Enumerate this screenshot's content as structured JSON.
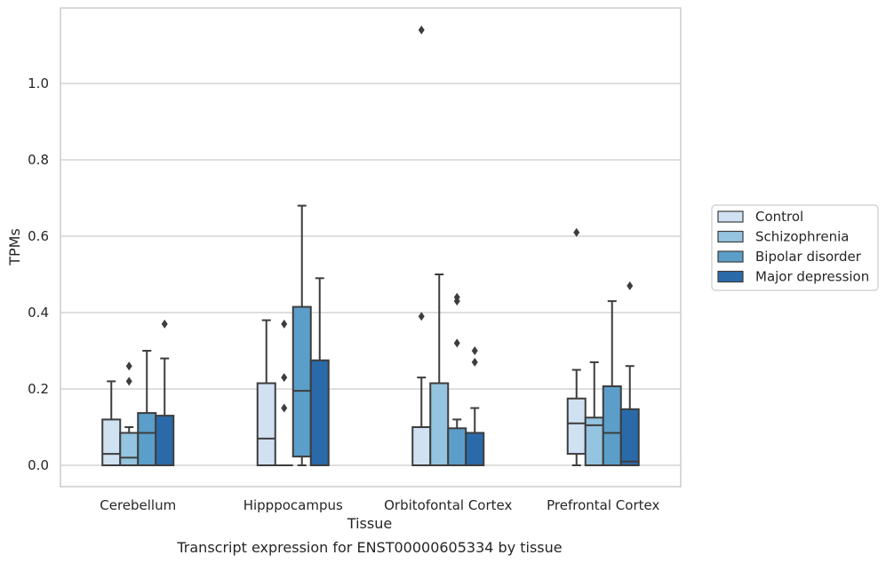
{
  "chart_data": {
    "type": "box",
    "xlabel": "Tissue",
    "ylabel": "TPMs",
    "caption": "Transcript expression for ENST00000605334 by tissue",
    "ylim": [
      -0.055,
      1.2
    ],
    "yticks": [
      0.0,
      0.2,
      0.4,
      0.6,
      0.8,
      1.0
    ],
    "ytick_labels": [
      "0.0",
      "0.2",
      "0.4",
      "0.6",
      "0.8",
      "1.0"
    ],
    "grid": "horizontal",
    "legend_position": "right",
    "categories": [
      "Cerebellum",
      "Hipppocampus",
      "Orbitofontal Cortex",
      "Prefrontal Cortex"
    ],
    "series": [
      {
        "name": "Control",
        "color": "#d0e1f2",
        "boxes": [
          {
            "q1": 0.0,
            "median": 0.03,
            "q3": 0.12,
            "whisker_low": 0.0,
            "whisker_high": 0.22,
            "outliers": []
          },
          {
            "q1": 0.0,
            "median": 0.07,
            "q3": 0.215,
            "whisker_low": 0.0,
            "whisker_high": 0.38,
            "outliers": []
          },
          {
            "q1": 0.0,
            "median": 0.0,
            "q3": 0.1,
            "whisker_low": 0.0,
            "whisker_high": 0.23,
            "outliers": [
              0.39,
              1.14
            ]
          },
          {
            "q1": 0.03,
            "median": 0.11,
            "q3": 0.175,
            "whisker_low": 0.0,
            "whisker_high": 0.25,
            "outliers": [
              0.61
            ]
          }
        ]
      },
      {
        "name": "Schizophrenia",
        "color": "#94c4df",
        "boxes": [
          {
            "q1": 0.0,
            "median": 0.02,
            "q3": 0.085,
            "whisker_low": 0.0,
            "whisker_high": 0.1,
            "outliers": [
              0.22,
              0.26
            ]
          },
          {
            "q1": 0.0,
            "median": 0.0,
            "q3": 0.0,
            "whisker_low": 0.0,
            "whisker_high": 0.0,
            "outliers": [
              0.15,
              0.23,
              0.37
            ]
          },
          {
            "q1": 0.0,
            "median": 0.0,
            "q3": 0.215,
            "whisker_low": 0.0,
            "whisker_high": 0.5,
            "outliers": []
          },
          {
            "q1": 0.0,
            "median": 0.105,
            "q3": 0.125,
            "whisker_low": 0.0,
            "whisker_high": 0.27,
            "outliers": []
          }
        ]
      },
      {
        "name": "Bipolar disorder",
        "color": "#5b9ec9",
        "boxes": [
          {
            "q1": 0.0,
            "median": 0.085,
            "q3": 0.137,
            "whisker_low": 0.0,
            "whisker_high": 0.3,
            "outliers": []
          },
          {
            "q1": 0.023,
            "median": 0.195,
            "q3": 0.415,
            "whisker_low": 0.0,
            "whisker_high": 0.68,
            "outliers": []
          },
          {
            "q1": 0.0,
            "median": 0.0,
            "q3": 0.097,
            "whisker_low": 0.0,
            "whisker_high": 0.12,
            "outliers": [
              0.32,
              0.43,
              0.44
            ]
          },
          {
            "q1": 0.0,
            "median": 0.085,
            "q3": 0.207,
            "whisker_low": 0.0,
            "whisker_high": 0.43,
            "outliers": []
          }
        ]
      },
      {
        "name": "Major depression",
        "color": "#2a6aa9",
        "boxes": [
          {
            "q1": 0.0,
            "median": 0.0,
            "q3": 0.13,
            "whisker_low": 0.0,
            "whisker_high": 0.28,
            "outliers": [
              0.37
            ]
          },
          {
            "q1": 0.0,
            "median": 0.0,
            "q3": 0.275,
            "whisker_low": 0.0,
            "whisker_high": 0.49,
            "outliers": []
          },
          {
            "q1": 0.0,
            "median": 0.0,
            "q3": 0.085,
            "whisker_low": 0.0,
            "whisker_high": 0.15,
            "outliers": [
              0.27,
              0.3
            ]
          },
          {
            "q1": 0.0,
            "median": 0.01,
            "q3": 0.147,
            "whisker_low": 0.0,
            "whisker_high": 0.26,
            "outliers": [
              0.47
            ]
          }
        ]
      }
    ]
  }
}
